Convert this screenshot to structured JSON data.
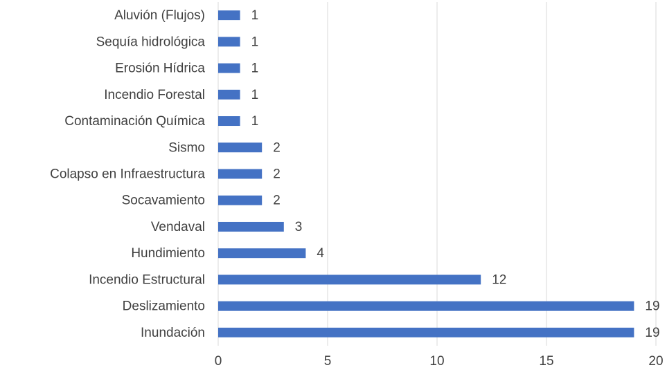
{
  "chart_data": {
    "type": "barh",
    "categories": [
      "Aluvión (Flujos)",
      "Sequía hidrológica",
      "Erosión Hídrica",
      "Incendio Forestal",
      "Contaminación Química",
      "Sismo",
      "Colapso en Infraestructura",
      "Socavamiento",
      "Vendaval",
      "Hundimiento",
      "Incendio Estructural",
      "Deslizamiento",
      "Inundación"
    ],
    "values": [
      1,
      1,
      1,
      1,
      1,
      2,
      2,
      2,
      3,
      4,
      12,
      19,
      19
    ],
    "color": "#4472c4",
    "xlim": [
      0,
      20
    ],
    "xticks": [
      0,
      5,
      10,
      15,
      20
    ],
    "grid": true
  }
}
